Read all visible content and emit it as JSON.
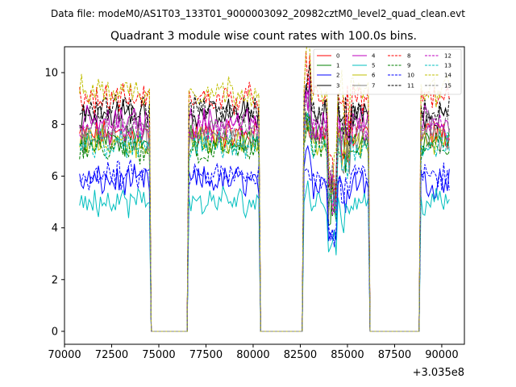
{
  "chart_data": {
    "type": "line",
    "suptitle": "Data file: modeM0/AS1T03_133T01_9000003092_20982cztM0_level2_quad_clean.evt",
    "title": "Quadrant 3 module wise count rates with 100.0s bins.",
    "xlabel": "",
    "ylabel": "",
    "offset_label": "+3.035e8",
    "xlim": [
      70000,
      91200
    ],
    "ylim": [
      -0.5,
      11.0
    ],
    "xticks": [
      70000,
      72500,
      75000,
      77500,
      80000,
      82500,
      85000,
      87500,
      90000
    ],
    "xtick_labels": [
      "70000",
      "72500",
      "75000",
      "77500",
      "80000",
      "82500",
      "85000",
      "87500",
      "90000"
    ],
    "yticks": [
      0,
      2,
      4,
      6,
      8,
      10
    ],
    "ytick_labels": [
      "0",
      "2",
      "4",
      "6",
      "8",
      "10"
    ],
    "grid": false,
    "legend_position": "top-right",
    "time_axis": {
      "start": 70800,
      "end": 90400,
      "bin": 100
    },
    "zero_gaps": [
      [
        74550,
        76550
      ],
      [
        80350,
        82650
      ],
      [
        86150,
        88850
      ]
    ],
    "series": [
      {
        "name": "0",
        "level": 7.6,
        "color": "#ff0000",
        "dash": "solid"
      },
      {
        "name": "1",
        "level": 7.4,
        "color": "#008000",
        "dash": "solid"
      },
      {
        "name": "2",
        "level": 5.8,
        "color": "#0000ff",
        "dash": "solid"
      },
      {
        "name": "3",
        "level": 8.4,
        "color": "#000000",
        "dash": "solid"
      },
      {
        "name": "4",
        "level": 8.1,
        "color": "#bf00bf",
        "dash": "solid"
      },
      {
        "name": "5",
        "level": 5.0,
        "color": "#00bfbf",
        "dash": "solid"
      },
      {
        "name": "6",
        "level": 7.3,
        "color": "#bfbf00",
        "dash": "solid"
      },
      {
        "name": "7",
        "level": 7.5,
        "color": "#808080",
        "dash": "solid"
      },
      {
        "name": "8",
        "level": 9.0,
        "color": "#ff0000",
        "dash": "dashed"
      },
      {
        "name": "9",
        "level": 7.0,
        "color": "#008000",
        "dash": "dashed"
      },
      {
        "name": "10",
        "level": 6.0,
        "color": "#0000ff",
        "dash": "dashed"
      },
      {
        "name": "11",
        "level": 8.6,
        "color": "#000000",
        "dash": "dashed"
      },
      {
        "name": "12",
        "level": 7.8,
        "color": "#bf00bf",
        "dash": "dashed"
      },
      {
        "name": "13",
        "level": 7.2,
        "color": "#00bfbf",
        "dash": "dashed"
      },
      {
        "name": "14",
        "level": 9.3,
        "color": "#bfbf00",
        "dash": "dashed"
      },
      {
        "name": "15",
        "level": 7.9,
        "color": "#808080",
        "dash": "dashed"
      }
    ]
  }
}
